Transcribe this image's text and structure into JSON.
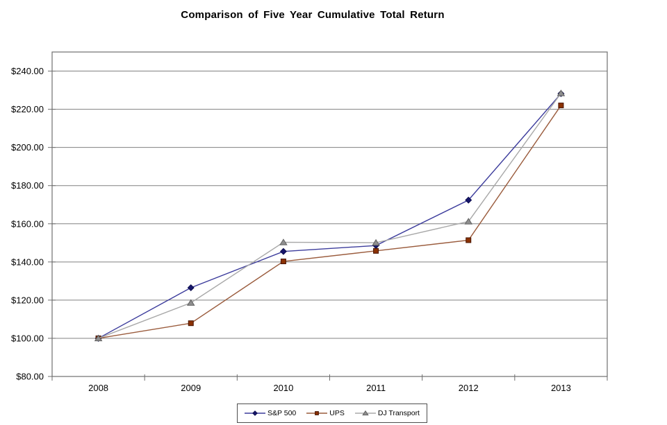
{
  "title": "Comparison of Five Year Cumulative Total Return",
  "chart_data": {
    "type": "line",
    "x_labels": [
      "2008",
      "2009",
      "2010",
      "2011",
      "2012",
      "2013"
    ],
    "series": [
      {
        "name": "S&P 500",
        "marker": "diamond",
        "line_color": "#3c3c9c",
        "marker_color": "#16166b",
        "marker_stroke": "#0d0d4d",
        "values": [
          100.0,
          126.5,
          145.5,
          148.6,
          172.4,
          228.2
        ]
      },
      {
        "name": "UPS",
        "marker": "square",
        "line_color": "#9a5b3c",
        "marker_color": "#8b3103",
        "marker_stroke": "#471400",
        "values": [
          100.0,
          107.9,
          140.3,
          145.8,
          151.4,
          222.0
        ]
      },
      {
        "name": "DJ Transport",
        "marker": "triangle",
        "line_color": "#a8a8a8",
        "marker_color": "#8f8f8f",
        "marker_stroke": "#606060",
        "values": [
          100.0,
          118.6,
          150.3,
          150.1,
          161.2,
          228.4
        ]
      }
    ],
    "ylim": [
      80,
      250
    ],
    "ytick_values": [
      240,
      220,
      200,
      180,
      160,
      140,
      120,
      100,
      80
    ],
    "yticks": [
      "$240.00",
      "$220.00",
      "$200.00",
      "$180.00",
      "$160.00",
      "$140.00",
      "$120.00",
      "$100.00",
      "$80.00"
    ],
    "grid": true,
    "grid_color": "#808080",
    "axis_color": "#6e6e6e",
    "text_color": "#000000",
    "legend_position": "bottom-center"
  }
}
